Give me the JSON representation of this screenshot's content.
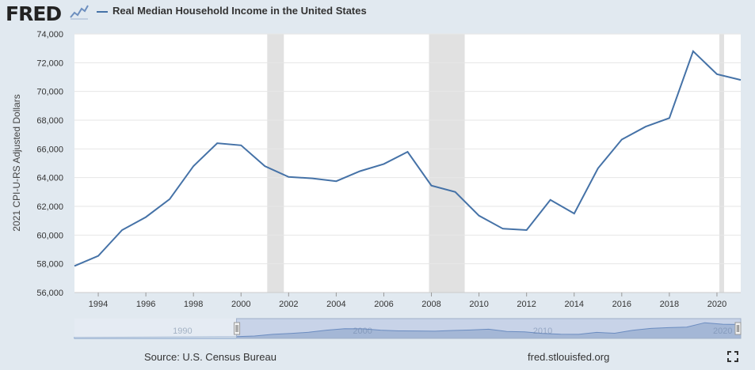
{
  "header": {
    "logo": "FRED",
    "logo_icon": "line-chart-icon",
    "series_label": "Real Median Household Income in the United States"
  },
  "footer": {
    "source": "Source: U.S. Census Bureau",
    "url": "fred.stlouisfed.org",
    "fullscreen_icon": "expand-icon"
  },
  "colors": {
    "line": "#4572a7",
    "recession": "#e1e1e1",
    "background": "#e1e9f0",
    "plot": "#ffffff",
    "navigator_fill": "#b8c9dd",
    "navigator_line": "#6d8fbf"
  },
  "chart_data": {
    "type": "line",
    "ylabel": "2021 CPI-U-RS Adjusted Dollars",
    "xlim": [
      1993,
      2021
    ],
    "ylim": [
      56000,
      74000
    ],
    "yticks": [
      56000,
      58000,
      60000,
      62000,
      64000,
      66000,
      68000,
      70000,
      72000,
      74000
    ],
    "ytick_labels": [
      "56,000",
      "58,000",
      "60,000",
      "62,000",
      "64,000",
      "66,000",
      "68,000",
      "70,000",
      "72,000",
      "74,000"
    ],
    "xticks": [
      1994,
      1996,
      1998,
      2000,
      2002,
      2004,
      2006,
      2008,
      2010,
      2012,
      2014,
      2016,
      2018,
      2020
    ],
    "xtick_labels": [
      "1994",
      "1996",
      "1998",
      "2000",
      "2002",
      "2004",
      "2006",
      "2008",
      "2010",
      "2012",
      "2014",
      "2016",
      "2018",
      "2020"
    ],
    "grid": true,
    "recessions": [
      [
        2001.1,
        2001.8
      ],
      [
        2007.9,
        2009.4
      ],
      [
        2020.1,
        2020.3
      ]
    ],
    "series": [
      {
        "name": "Real Median Household Income in the United States",
        "x": [
          1993,
          1994,
          1995,
          1996,
          1997,
          1998,
          1999,
          2000,
          2001,
          2002,
          2003,
          2004,
          2005,
          2006,
          2007,
          2008,
          2009,
          2010,
          2011,
          2012,
          2013,
          2014,
          2015,
          2016,
          2017,
          2018,
          2019,
          2020,
          2021
        ],
        "values": [
          57850,
          58550,
          60350,
          61250,
          62500,
          64800,
          66400,
          66250,
          64800,
          64050,
          63950,
          63750,
          64450,
          64950,
          65800,
          63450,
          63000,
          61350,
          60450,
          60350,
          62450,
          61500,
          64650,
          66650,
          67550,
          68150,
          72800,
          71200,
          70800
        ]
      }
    ],
    "navigator": {
      "xlim": [
        1984,
        2021
      ],
      "tick_labels": [
        "1990",
        "2000",
        "2010",
        "2020"
      ],
      "tick_values": [
        1990,
        2000,
        2010,
        2020
      ],
      "selection": [
        1993,
        2021
      ]
    }
  }
}
